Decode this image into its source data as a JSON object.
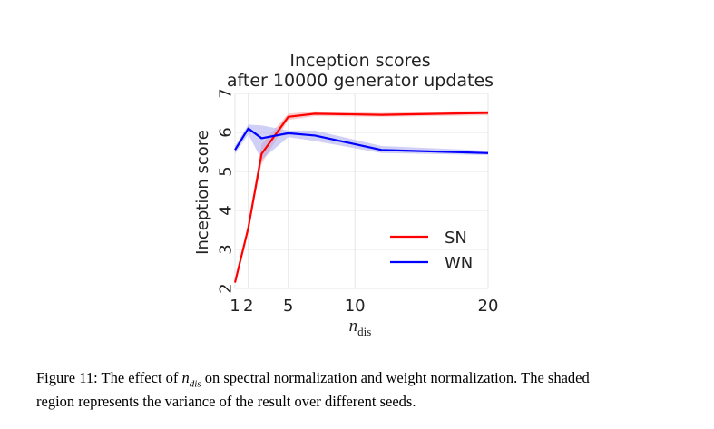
{
  "chart_data": {
    "type": "line",
    "title": [
      "Inception scores",
      "after 10000 generator updates"
    ],
    "xlabel": "n_dis",
    "xlabel_main": "n",
    "xlabel_sub": "dis",
    "ylabel": "Inception score",
    "xlim": [
      1,
      20
    ],
    "ylim": [
      2,
      7
    ],
    "xticks": [
      1,
      2,
      5,
      10,
      20
    ],
    "xtick_labels": [
      "1",
      "2",
      "5",
      "10",
      "20"
    ],
    "yticks": [
      2,
      3,
      4,
      5,
      6,
      7
    ],
    "ytick_labels": [
      "2",
      "3",
      "4",
      "5",
      "6",
      "7"
    ],
    "grid": true,
    "legend_position": "lower-right",
    "series": [
      {
        "name": "SN",
        "color": "#ff0000",
        "band_color": "#f4a0a0",
        "x": [
          1,
          2,
          3,
          5,
          7,
          12,
          20
        ],
        "y": [
          2.15,
          3.55,
          5.45,
          6.4,
          6.48,
          6.45,
          6.5
        ],
        "lower": [
          2.1,
          3.5,
          5.2,
          6.32,
          6.42,
          6.4,
          6.44
        ],
        "upper": [
          2.2,
          3.6,
          5.7,
          6.48,
          6.54,
          6.5,
          6.56
        ]
      },
      {
        "name": "WN",
        "color": "#0000ff",
        "band_color": "#a9a9ef",
        "x": [
          1,
          2,
          3,
          5,
          7,
          12,
          20
        ],
        "y": [
          5.55,
          6.1,
          5.85,
          5.98,
          5.92,
          5.55,
          5.47
        ],
        "lower": [
          5.45,
          5.95,
          5.3,
          5.88,
          5.78,
          5.47,
          5.42
        ],
        "upper": [
          5.65,
          6.2,
          6.18,
          6.05,
          6.05,
          5.65,
          5.53
        ]
      }
    ]
  },
  "caption": {
    "prefix": "Figure 11:  The effect of ",
    "math": "n",
    "math_sub": "dis",
    "line1_rest": " on spectral normalization and weight normalization.  The shaded",
    "line2": "region represents the variance of the result over different seeds."
  }
}
